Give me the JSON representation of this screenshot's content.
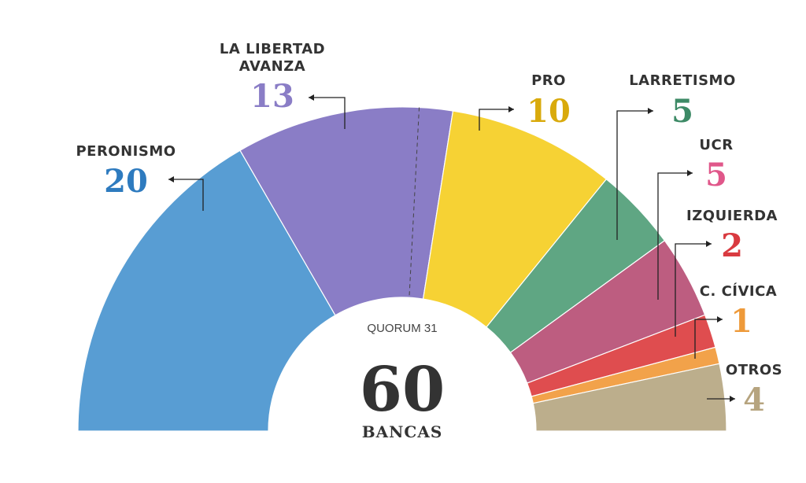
{
  "chart_data": {
    "type": "pie",
    "variant": "hemicycle",
    "total": {
      "value": "60",
      "label": "BANCAS"
    },
    "quorum": "QUORUM 31",
    "quorum_seats": 31,
    "series": [
      {
        "name": "PERONISMO",
        "seats": 20,
        "color": "#589dd3"
      },
      {
        "name": "LA LIBERTAD AVANZA",
        "lines": [
          "LA LIBERTAD",
          "AVANZA"
        ],
        "seats": 13,
        "color": "#8a7dc6"
      },
      {
        "name": "PRO",
        "seats": 10,
        "color": "#f6d234"
      },
      {
        "name": "LARRETISMO",
        "seats": 5,
        "color": "#5fa683"
      },
      {
        "name": "UCR",
        "seats": 5,
        "color": "#bd5d80"
      },
      {
        "name": "IZQUIERDA",
        "seats": 2,
        "color": "#df4d4f"
      },
      {
        "name": "C. CÍVICA",
        "seats": 1,
        "color": "#f2a24a"
      },
      {
        "name": "OTROS",
        "seats": 4,
        "color": "#bcae8c"
      }
    ],
    "label_colors": [
      "#2e7bbf",
      "#8a7dc6",
      "#d9aa0c",
      "#3d8a66",
      "#e0578a",
      "#d93a40",
      "#ee9a3a",
      "#b6a47f"
    ]
  }
}
